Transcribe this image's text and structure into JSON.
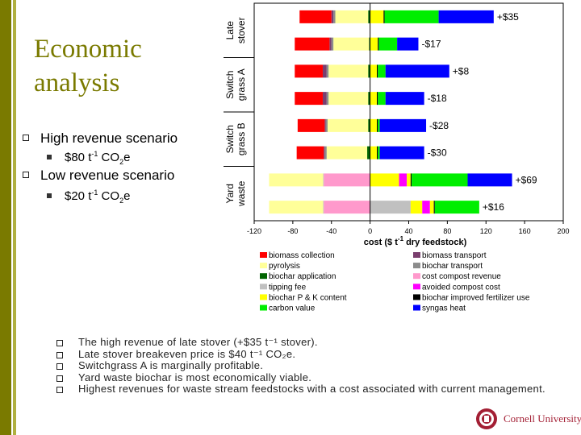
{
  "slide": {
    "title_line1": "Economic",
    "title_line2": "analysis",
    "scenarios": [
      {
        "label": "High revenue scenario",
        "price": "$80 t",
        "exp": "-1",
        "unit_a": " CO",
        "sub": "2",
        "unit_b": "e"
      },
      {
        "label": "Low revenue scenario",
        "price": "$20 t",
        "exp": "-1",
        "unit_a": " CO",
        "sub": "2",
        "unit_b": "e"
      }
    ],
    "notes": [
      "The high revenue of late stover (+$35 t⁻¹ stover).",
      "Late stover breakeven price is $40 t⁻¹ CO₂e.",
      "Switchgrass A is marginally profitable.",
      "Yard waste biochar is most economically viable.",
      "Highest revenues for waste stream feedstocks with a cost associated with current management."
    ],
    "logo_text": "Cornell University"
  },
  "chart_data": {
    "type": "bar",
    "orientation": "horizontal-stacked",
    "xlabel": "cost ($ t",
    "xlabel_exp": "-1",
    "xlabel_tail": " dry feedstock)",
    "xlim": [
      -120,
      200
    ],
    "xticks": [
      -120,
      -80,
      -40,
      0,
      40,
      80,
      120,
      160,
      200
    ],
    "groups": [
      {
        "label_line1": "Late",
        "label_line2": "stover",
        "rows": [
          0,
          1
        ]
      },
      {
        "label_line1": "Switch",
        "label_line2": "grass A",
        "rows": [
          2,
          3
        ]
      },
      {
        "label_line1": "Switch",
        "label_line2": "grass B",
        "rows": [
          4,
          5
        ]
      },
      {
        "label_line1": "Yard",
        "label_line2": "waste",
        "rows": [
          6,
          7
        ]
      }
    ],
    "series": [
      {
        "name": "biomass collection",
        "color": "#ff0000"
      },
      {
        "name": "biomass transport",
        "color": "#7a3f6e"
      },
      {
        "name": "pyrolysis",
        "color": "#ffff99"
      },
      {
        "name": "biochar transport",
        "color": "#8c8c8c"
      },
      {
        "name": "biochar application",
        "color": "#006400"
      },
      {
        "name": "cost compost revenue",
        "color": "#ff99cc"
      },
      {
        "name": "tipping fee",
        "color": "#c0c0c0"
      },
      {
        "name": "avoided compost cost",
        "color": "#ff00ff"
      },
      {
        "name": "biochar P & K content",
        "color": "#ffff00"
      },
      {
        "name": "biochar improved fertilizer use",
        "color": "#000000"
      },
      {
        "name": "carbon value",
        "color": "#00ee00"
      },
      {
        "name": "syngas heat",
        "color": "#0000ff"
      }
    ],
    "rows": [
      {
        "net_label": "+$35",
        "costs": [
          [
            4,
            2
          ],
          [
            2,
            34
          ],
          [
            3,
            2
          ],
          [
            1,
            2
          ],
          [
            0,
            33
          ]
        ],
        "revenues": [
          [
            8,
            14
          ],
          [
            9,
            1
          ],
          [
            10,
            56
          ],
          [
            11,
            57
          ]
        ]
      },
      {
        "net_label": "-$17",
        "costs": [
          [
            4,
            1
          ],
          [
            2,
            37
          ],
          [
            3,
            2
          ],
          [
            1,
            2
          ],
          [
            0,
            36
          ]
        ],
        "revenues": [
          [
            8,
            8
          ],
          [
            9,
            1
          ],
          [
            10,
            19
          ],
          [
            11,
            22
          ]
        ]
      },
      {
        "net_label": "+$8",
        "costs": [
          [
            4,
            2
          ],
          [
            2,
            41
          ],
          [
            3,
            2
          ],
          [
            1,
            4
          ],
          [
            0,
            29
          ]
        ],
        "revenues": [
          [
            8,
            7
          ],
          [
            9,
            1
          ],
          [
            10,
            8
          ],
          [
            11,
            66
          ]
        ]
      },
      {
        "net_label": "-$18",
        "costs": [
          [
            4,
            2
          ],
          [
            2,
            41
          ],
          [
            3,
            2
          ],
          [
            1,
            4
          ],
          [
            0,
            29
          ]
        ],
        "revenues": [
          [
            8,
            7
          ],
          [
            9,
            1
          ],
          [
            10,
            8
          ],
          [
            11,
            40
          ]
        ]
      },
      {
        "net_label": "-$28",
        "costs": [
          [
            4,
            2
          ],
          [
            2,
            42
          ],
          [
            3,
            2
          ],
          [
            1,
            1
          ],
          [
            0,
            28
          ]
        ],
        "revenues": [
          [
            8,
            7
          ],
          [
            9,
            1
          ],
          [
            10,
            2
          ],
          [
            11,
            48
          ]
        ]
      },
      {
        "net_label": "-$30",
        "costs": [
          [
            4,
            3
          ],
          [
            2,
            42
          ],
          [
            3,
            2
          ],
          [
            1,
            1
          ],
          [
            0,
            28
          ]
        ],
        "revenues": [
          [
            8,
            7
          ],
          [
            9,
            1
          ],
          [
            10,
            2
          ],
          [
            11,
            46
          ]
        ]
      },
      {
        "net_label": "+$69",
        "costs": [
          [
            5,
            48
          ],
          [
            6,
            0.6
          ],
          [
            2,
            56
          ]
        ],
        "revenues": [
          [
            8,
            30
          ],
          [
            7,
            8
          ],
          [
            8,
            4
          ],
          [
            9,
            1
          ],
          [
            10,
            58
          ],
          [
            11,
            46
          ]
        ]
      },
      {
        "net_label": "+$16",
        "costs": [
          [
            5,
            48
          ],
          [
            6,
            0.6
          ],
          [
            2,
            56
          ]
        ],
        "revenues": [
          [
            6,
            42
          ],
          [
            8,
            12
          ],
          [
            7,
            8
          ],
          [
            8,
            4
          ],
          [
            9,
            1
          ],
          [
            10,
            46
          ]
        ]
      }
    ]
  }
}
